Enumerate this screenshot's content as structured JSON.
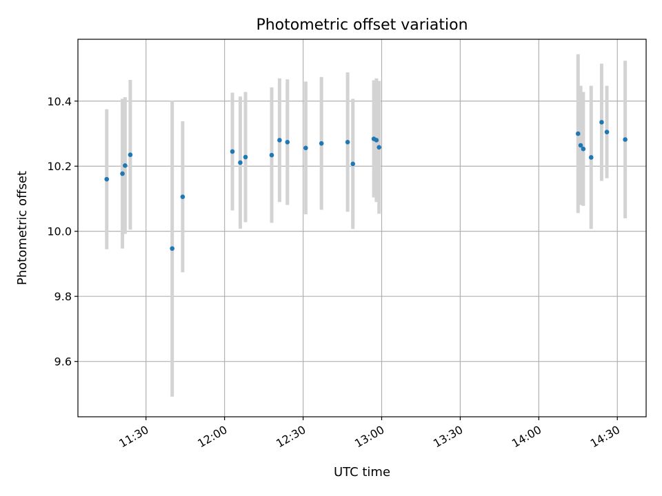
{
  "chart_data": {
    "type": "scatter",
    "title": "Photometric offset variation",
    "xlabel": "UTC time",
    "ylabel": "Photometric offset",
    "x_tick_labels": [
      "11:30",
      "12:00",
      "12:30",
      "13:00",
      "13:30",
      "14:00",
      "14:30"
    ],
    "x_tick_values": [
      "11:30",
      "12:00",
      "12:30",
      "13:00",
      "13:30",
      "14:00",
      "14:30"
    ],
    "xlim": [
      "11:04",
      "14:41"
    ],
    "y_tick_labels": [
      "9.6",
      "9.8",
      "10.0",
      "10.2",
      "10.4"
    ],
    "y_tick_values": [
      9.6,
      9.8,
      10.0,
      10.2,
      10.4
    ],
    "ylim": [
      9.43,
      10.59
    ],
    "grid": true,
    "point_color": "#1f77b4",
    "errorbar_color": "#d3d3d3",
    "points": [
      {
        "time": "11:15",
        "y": 10.16,
        "err": 0.215
      },
      {
        "time": "11:21",
        "y": 10.177,
        "err": 0.23
      },
      {
        "time": "11:22",
        "y": 10.202,
        "err": 0.21
      },
      {
        "time": "11:24",
        "y": 10.235,
        "err": 0.23
      },
      {
        "time": "11:40",
        "y": 9.947,
        "err": 0.455
      },
      {
        "time": "11:44",
        "y": 10.106,
        "err": 0.232
      },
      {
        "time": "12:03",
        "y": 10.245,
        "err": 0.181
      },
      {
        "time": "12:06",
        "y": 10.211,
        "err": 0.203
      },
      {
        "time": "12:08",
        "y": 10.228,
        "err": 0.2
      },
      {
        "time": "12:18",
        "y": 10.234,
        "err": 0.208
      },
      {
        "time": "12:21",
        "y": 10.28,
        "err": 0.19
      },
      {
        "time": "12:24",
        "y": 10.274,
        "err": 0.193
      },
      {
        "time": "12:31",
        "y": 10.256,
        "err": 0.204
      },
      {
        "time": "12:37",
        "y": 10.27,
        "err": 0.204
      },
      {
        "time": "12:47",
        "y": 10.274,
        "err": 0.214
      },
      {
        "time": "12:49",
        "y": 10.207,
        "err": 0.2
      },
      {
        "time": "12:57",
        "y": 10.284,
        "err": 0.18
      },
      {
        "time": "12:58",
        "y": 10.28,
        "err": 0.19
      },
      {
        "time": "12:59",
        "y": 10.258,
        "err": 0.204
      },
      {
        "time": "14:15",
        "y": 10.3,
        "err": 0.244
      },
      {
        "time": "14:16",
        "y": 10.264,
        "err": 0.183
      },
      {
        "time": "14:17",
        "y": 10.253,
        "err": 0.175
      },
      {
        "time": "14:20",
        "y": 10.227,
        "err": 0.22
      },
      {
        "time": "14:24",
        "y": 10.335,
        "err": 0.18
      },
      {
        "time": "14:26",
        "y": 10.305,
        "err": 0.142
      },
      {
        "time": "14:33",
        "y": 10.282,
        "err": 0.242
      }
    ]
  }
}
